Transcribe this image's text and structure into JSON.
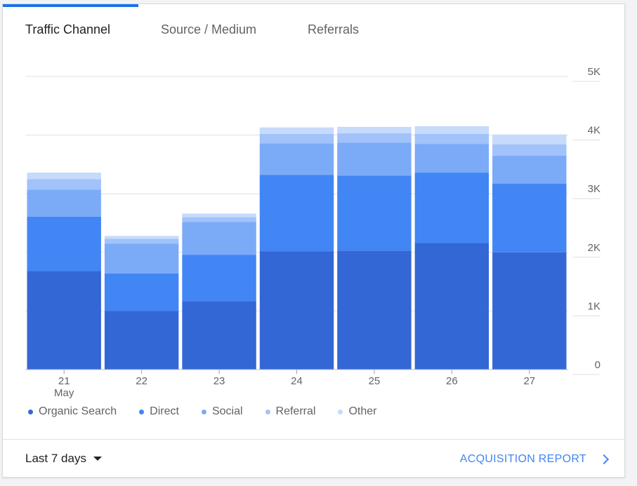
{
  "tabs": [
    {
      "label": "Traffic Channel",
      "active": true
    },
    {
      "label": "Source / Medium",
      "active": false
    },
    {
      "label": "Referrals",
      "active": false
    }
  ],
  "colors": {
    "accent": "#1a73e8",
    "link": "#4285f4",
    "series": [
      "#3367d6",
      "#4285f4",
      "#7baaf7",
      "#a1c2fa",
      "#c6dafc"
    ]
  },
  "chart_data": {
    "type": "bar",
    "stacked": true,
    "categories": [
      "21",
      "22",
      "23",
      "24",
      "25",
      "26",
      "27"
    ],
    "category_sublabels": [
      "May",
      "",
      "",
      "",
      "",
      "",
      ""
    ],
    "series": [
      {
        "name": "Organic Search",
        "values": [
          1680,
          1000,
          1170,
          2020,
          2030,
          2160,
          2000
        ]
      },
      {
        "name": "Direct",
        "values": [
          930,
          640,
          790,
          1300,
          1280,
          1200,
          1170
        ]
      },
      {
        "name": "Social",
        "values": [
          460,
          510,
          560,
          540,
          560,
          490,
          480
        ]
      },
      {
        "name": "Referral",
        "values": [
          180,
          80,
          80,
          160,
          160,
          170,
          190
        ]
      },
      {
        "name": "Other",
        "values": [
          110,
          50,
          60,
          110,
          110,
          130,
          170
        ]
      }
    ],
    "yticks": [
      {
        "value": 0,
        "label": "0"
      },
      {
        "value": 1000,
        "label": "1K"
      },
      {
        "value": 2000,
        "label": "2K"
      },
      {
        "value": 3000,
        "label": "3K"
      },
      {
        "value": 4000,
        "label": "4K"
      },
      {
        "value": 5000,
        "label": "5K"
      }
    ],
    "ylim": [
      0,
      5000
    ],
    "y_axis_position": "right",
    "grid": true,
    "legend_position": "bottom-left"
  },
  "footer": {
    "date_range": "Last 7 days",
    "report_link": "ACQUISITION REPORT"
  }
}
